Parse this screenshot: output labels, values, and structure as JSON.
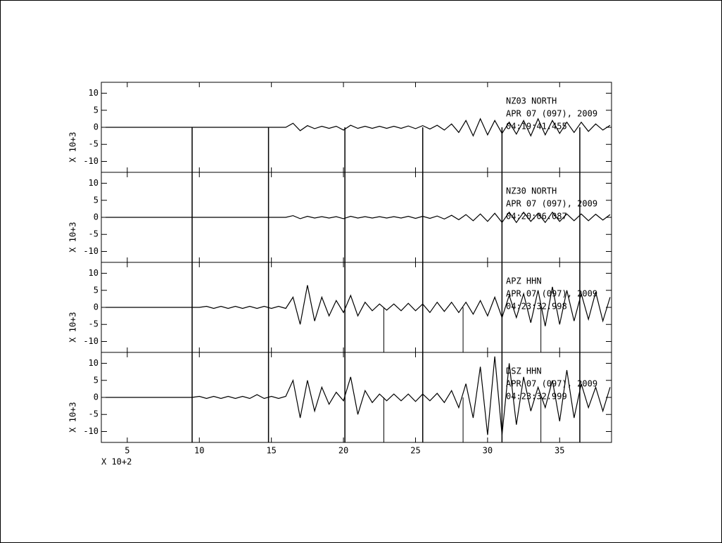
{
  "chart_data": [
    {
      "type": "line",
      "annotation": [
        "NZ03   NORTH",
        "APR 07 (097), 2009",
        "04:19:41.455"
      ],
      "y_label": "X 10+3",
      "color": "#000000",
      "x": [
        3.5,
        4,
        4.5,
        5,
        5.5,
        6,
        6.5,
        7,
        7.5,
        8,
        8.5,
        9,
        9.5,
        10,
        10.5,
        11,
        11.5,
        12,
        12.5,
        13,
        13.5,
        14,
        14.5,
        15,
        15.5,
        16,
        16.5,
        17,
        17.5,
        18,
        18.5,
        19,
        19.5,
        20,
        20.5,
        21,
        21.5,
        22,
        22.5,
        23,
        23.5,
        24,
        24.5,
        25,
        25.5,
        26,
        26.5,
        27,
        27.5,
        28,
        28.5,
        29,
        29.5,
        30,
        30.5,
        31,
        31.5,
        32,
        32.5,
        33,
        33.5,
        34,
        34.5,
        35,
        35.5,
        36,
        36.5,
        37,
        37.5,
        38,
        38.5
      ],
      "values": [
        0,
        0,
        0,
        0,
        0,
        0,
        0,
        0,
        0,
        0,
        0,
        0,
        0,
        0,
        0,
        0,
        0,
        0,
        0,
        0,
        0,
        0,
        0,
        0,
        0,
        0,
        1.2,
        -1,
        0.5,
        -0.4,
        0.3,
        -0.3,
        0.3,
        -0.8,
        0.6,
        -0.3,
        0.3,
        -0.3,
        0.3,
        -0.3,
        0.3,
        -0.3,
        0.4,
        -0.4,
        0.5,
        -0.5,
        0.6,
        -0.8,
        1,
        -1.5,
        2,
        -2.5,
        2.5,
        -2.2,
        2,
        -1.8,
        1.5,
        -2,
        2,
        -2.5,
        2.5,
        -2.2,
        2,
        -1.8,
        1.5,
        -1.5,
        1.5,
        -1.2,
        1,
        -0.8,
        0.6
      ],
      "xlim": [
        3.2,
        38.6
      ],
      "ylim": [
        -13.2,
        13.2
      ],
      "yticks": [
        10,
        5,
        0,
        -5,
        -10
      ],
      "markers": [
        9.5,
        14.8,
        20.1,
        25.5,
        31.0,
        36.4
      ],
      "minor_markers": []
    },
    {
      "type": "line",
      "annotation": [
        "NZ30   NORTH",
        "APR 07 (097), 2009",
        "04:20:06.087"
      ],
      "y_label": "X 10+3",
      "color": "#000000",
      "x": [
        3.5,
        4,
        4.5,
        5,
        5.5,
        6,
        6.5,
        7,
        7.5,
        8,
        8.5,
        9,
        9.5,
        10,
        10.5,
        11,
        11.5,
        12,
        12.5,
        13,
        13.5,
        14,
        14.5,
        15,
        15.5,
        16,
        16.5,
        17,
        17.5,
        18,
        18.5,
        19,
        19.5,
        20,
        20.5,
        21,
        21.5,
        22,
        22.5,
        23,
        23.5,
        24,
        24.5,
        25,
        25.5,
        26,
        26.5,
        27,
        27.5,
        28,
        28.5,
        29,
        29.5,
        30,
        30.5,
        31,
        31.5,
        32,
        32.5,
        33,
        33.5,
        34,
        34.5,
        35,
        35.5,
        36,
        36.5,
        37,
        37.5,
        38,
        38.5
      ],
      "values": [
        0,
        0,
        0,
        0,
        0,
        0,
        0,
        0,
        0,
        0,
        0,
        0,
        0,
        0,
        0,
        0,
        0,
        0,
        0,
        0,
        0,
        0,
        0,
        0,
        0,
        0,
        0.5,
        -0.4,
        0.3,
        -0.2,
        0.2,
        -0.2,
        0.2,
        -0.4,
        0.3,
        -0.2,
        0.2,
        -0.2,
        0.2,
        -0.2,
        0.2,
        -0.2,
        0.3,
        -0.3,
        0.3,
        -0.3,
        0.4,
        -0.5,
        0.6,
        -0.7,
        0.8,
        -1,
        1,
        -1.2,
        1.2,
        -1.5,
        1.5,
        -1.5,
        1.5,
        -1.2,
        1.2,
        -1.5,
        1.5,
        -1.2,
        1,
        -1,
        1,
        -1,
        0.9,
        -0.8,
        0.8
      ],
      "xlim": [
        3.2,
        38.6
      ],
      "ylim": [
        -13.2,
        13.2
      ],
      "yticks": [
        10,
        5,
        0,
        -5,
        -10
      ],
      "markers": [
        9.5,
        14.8,
        20.1,
        25.5,
        31.0,
        36.4
      ],
      "minor_markers": []
    },
    {
      "type": "line",
      "annotation": [
        "APZ   HHN",
        "APR 07 (097), 2009",
        "04:23:32.998"
      ],
      "y_label": "X 10+3",
      "color": "#000000",
      "x": [
        3.5,
        4,
        4.5,
        5,
        5.5,
        6,
        6.5,
        7,
        7.5,
        8,
        8.5,
        9,
        9.5,
        10,
        10.5,
        11,
        11.5,
        12,
        12.5,
        13,
        13.5,
        14,
        14.5,
        15,
        15.5,
        16,
        16.5,
        17,
        17.5,
        18,
        18.5,
        19,
        19.5,
        20,
        20.5,
        21,
        21.5,
        22,
        22.5,
        23,
        23.5,
        24,
        24.5,
        25,
        25.5,
        26,
        26.5,
        27,
        27.5,
        28,
        28.5,
        29,
        29.5,
        30,
        30.5,
        31,
        31.5,
        32,
        32.5,
        33,
        33.5,
        34,
        34.5,
        35,
        35.5,
        36,
        36.5,
        37,
        37.5,
        38,
        38.5
      ],
      "values": [
        0,
        0,
        0,
        0,
        0,
        0,
        0,
        0,
        0,
        0,
        0,
        0,
        0,
        0,
        0.3,
        -0.3,
        0.3,
        -0.3,
        0.3,
        -0.3,
        0.3,
        -0.3,
        0.3,
        -0.3,
        0.3,
        -0.3,
        3,
        -5,
        6.5,
        -4,
        3,
        -2.5,
        2,
        -1.5,
        3.5,
        -2.5,
        1.5,
        -1,
        1,
        -0.8,
        1,
        -1,
        1.2,
        -1,
        1,
        -1.5,
        1.5,
        -1.2,
        1.5,
        -1.5,
        1.5,
        -2,
        2,
        -2.5,
        3,
        -3,
        3.5,
        -3,
        4,
        -4.5,
        5,
        -5.5,
        6,
        -5,
        5,
        -4,
        4,
        -3.5,
        4.5,
        -4,
        3
      ],
      "xlim": [
        3.2,
        38.6
      ],
      "ylim": [
        -13.2,
        13.2
      ],
      "yticks": [
        10,
        5,
        0,
        -5,
        -10
      ],
      "markers": [
        9.5,
        14.8,
        20.1,
        25.5,
        31.0,
        36.4
      ],
      "minor_markers": [
        22.8,
        28.3,
        33.7
      ]
    },
    {
      "type": "line",
      "annotation": [
        "DSZ   HHN",
        "APR 07 (097), 2009",
        "04:23:32.999"
      ],
      "y_label": "X 10+3",
      "x_label": "X 10+2",
      "color": "#000000",
      "x": [
        3.5,
        4,
        4.5,
        5,
        5.5,
        6,
        6.5,
        7,
        7.5,
        8,
        8.5,
        9,
        9.5,
        10,
        10.5,
        11,
        11.5,
        12,
        12.5,
        13,
        13.5,
        14,
        14.5,
        15,
        15.5,
        16,
        16.5,
        17,
        17.5,
        18,
        18.5,
        19,
        19.5,
        20,
        20.5,
        21,
        21.5,
        22,
        22.5,
        23,
        23.5,
        24,
        24.5,
        25,
        25.5,
        26,
        26.5,
        27,
        27.5,
        28,
        28.5,
        29,
        29.5,
        30,
        30.5,
        31,
        31.5,
        32,
        32.5,
        33,
        33.5,
        34,
        34.5,
        35,
        35.5,
        36,
        36.5,
        37,
        37.5,
        38,
        38.5
      ],
      "values": [
        0,
        0,
        0,
        0,
        0,
        0,
        0,
        0,
        0,
        0,
        0,
        0,
        0,
        0.3,
        -0.3,
        0.3,
        -0.3,
        0.3,
        -0.3,
        0.3,
        -0.3,
        0.8,
        -0.3,
        0.3,
        -0.3,
        0.3,
        5,
        -6,
        5,
        -4,
        3,
        -2,
        1.5,
        -1,
        6,
        -5,
        2,
        -1.5,
        1,
        -1,
        1,
        -1,
        1,
        -1.2,
        1,
        -1,
        1.2,
        -1.5,
        2,
        -3,
        4,
        -6,
        9,
        -11,
        12,
        -11,
        10,
        -8,
        6,
        -4,
        3,
        -3,
        5,
        -7,
        8,
        -6,
        4,
        -3,
        3,
        -4,
        3
      ],
      "xlim": [
        3.2,
        38.6
      ],
      "ylim": [
        -13.2,
        13.2
      ],
      "yticks": [
        10,
        5,
        0,
        -5,
        -10
      ],
      "xticks": [
        5,
        10,
        15,
        20,
        25,
        30,
        35
      ],
      "markers": [
        9.5,
        14.8,
        20.1,
        25.5,
        31.0,
        36.4
      ],
      "minor_markers": [
        22.8,
        28.3,
        33.7
      ]
    }
  ]
}
